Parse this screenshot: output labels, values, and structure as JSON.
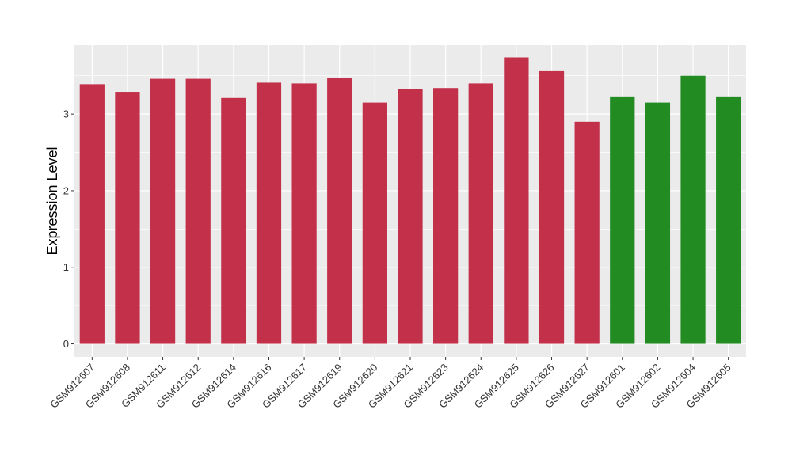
{
  "chart_data": {
    "type": "bar",
    "title": "",
    "xlabel": "",
    "ylabel": "Expression Level",
    "ylim": [
      -0.17,
      3.9
    ],
    "yticks": [
      0,
      1,
      2,
      3
    ],
    "grid": true,
    "legend": "none",
    "categories": [
      "GSM912607",
      "GSM912608",
      "GSM912611",
      "GSM912612",
      "GSM912614",
      "GSM912616",
      "GSM912617",
      "GSM912619",
      "GSM912620",
      "GSM912621",
      "GSM912623",
      "GSM912624",
      "GSM912625",
      "GSM912626",
      "GSM912627",
      "GSM912601",
      "GSM912602",
      "GSM912604",
      "GSM912605"
    ],
    "values": [
      3.39,
      3.29,
      3.46,
      3.46,
      3.21,
      3.41,
      3.4,
      3.47,
      3.15,
      3.33,
      3.34,
      3.4,
      3.74,
      3.56,
      2.9,
      3.23,
      3.15,
      3.5,
      3.23
    ],
    "groups": [
      "red",
      "red",
      "red",
      "red",
      "red",
      "red",
      "red",
      "red",
      "red",
      "red",
      "red",
      "red",
      "red",
      "red",
      "red",
      "green",
      "green",
      "green",
      "green"
    ],
    "colors": {
      "red": "#C3304A",
      "green": "#228B22",
      "panel": "#EBEBEB",
      "grid": "#FFFFFF"
    }
  }
}
